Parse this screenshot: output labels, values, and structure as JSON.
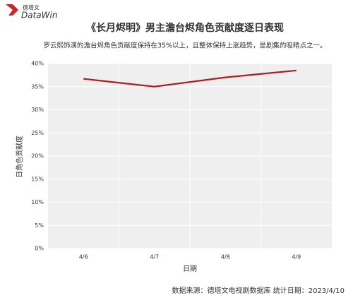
{
  "logo": {
    "brand_cn": "德塔文",
    "brand_en": "DataWin"
  },
  "chart_data": {
    "type": "line",
    "title": "《长月烬明》男主澹台烬角色贡献度逐日表现",
    "subtitle": "罗云熙饰演的澹台烬角色贡献度保持在35%以上，且整体保持上涨趋势，是剧集的吸睛点之一。",
    "categories": [
      "4/6",
      "4/7",
      "4/8",
      "4/9"
    ],
    "values": [
      36.7,
      35.0,
      37.0,
      38.5
    ],
    "color": "#b01c1c",
    "ylim": [
      0,
      40
    ],
    "yticks": [
      {
        "value": 0,
        "label": "0%"
      },
      {
        "value": 5,
        "label": "5%"
      },
      {
        "value": 10,
        "label": "10%"
      },
      {
        "value": 15,
        "label": "15%"
      },
      {
        "value": 20,
        "label": "20%"
      },
      {
        "value": 25,
        "label": "25%"
      },
      {
        "value": 30,
        "label": "30%"
      },
      {
        "value": 35,
        "label": "35%"
      },
      {
        "value": 40,
        "label": "40%"
      }
    ],
    "ylabel": "日角色贡献度",
    "xlabel": "日期",
    "grid": true,
    "source": "数据来源：德塔文电视剧数据库  统计日期：2023/4/10"
  }
}
